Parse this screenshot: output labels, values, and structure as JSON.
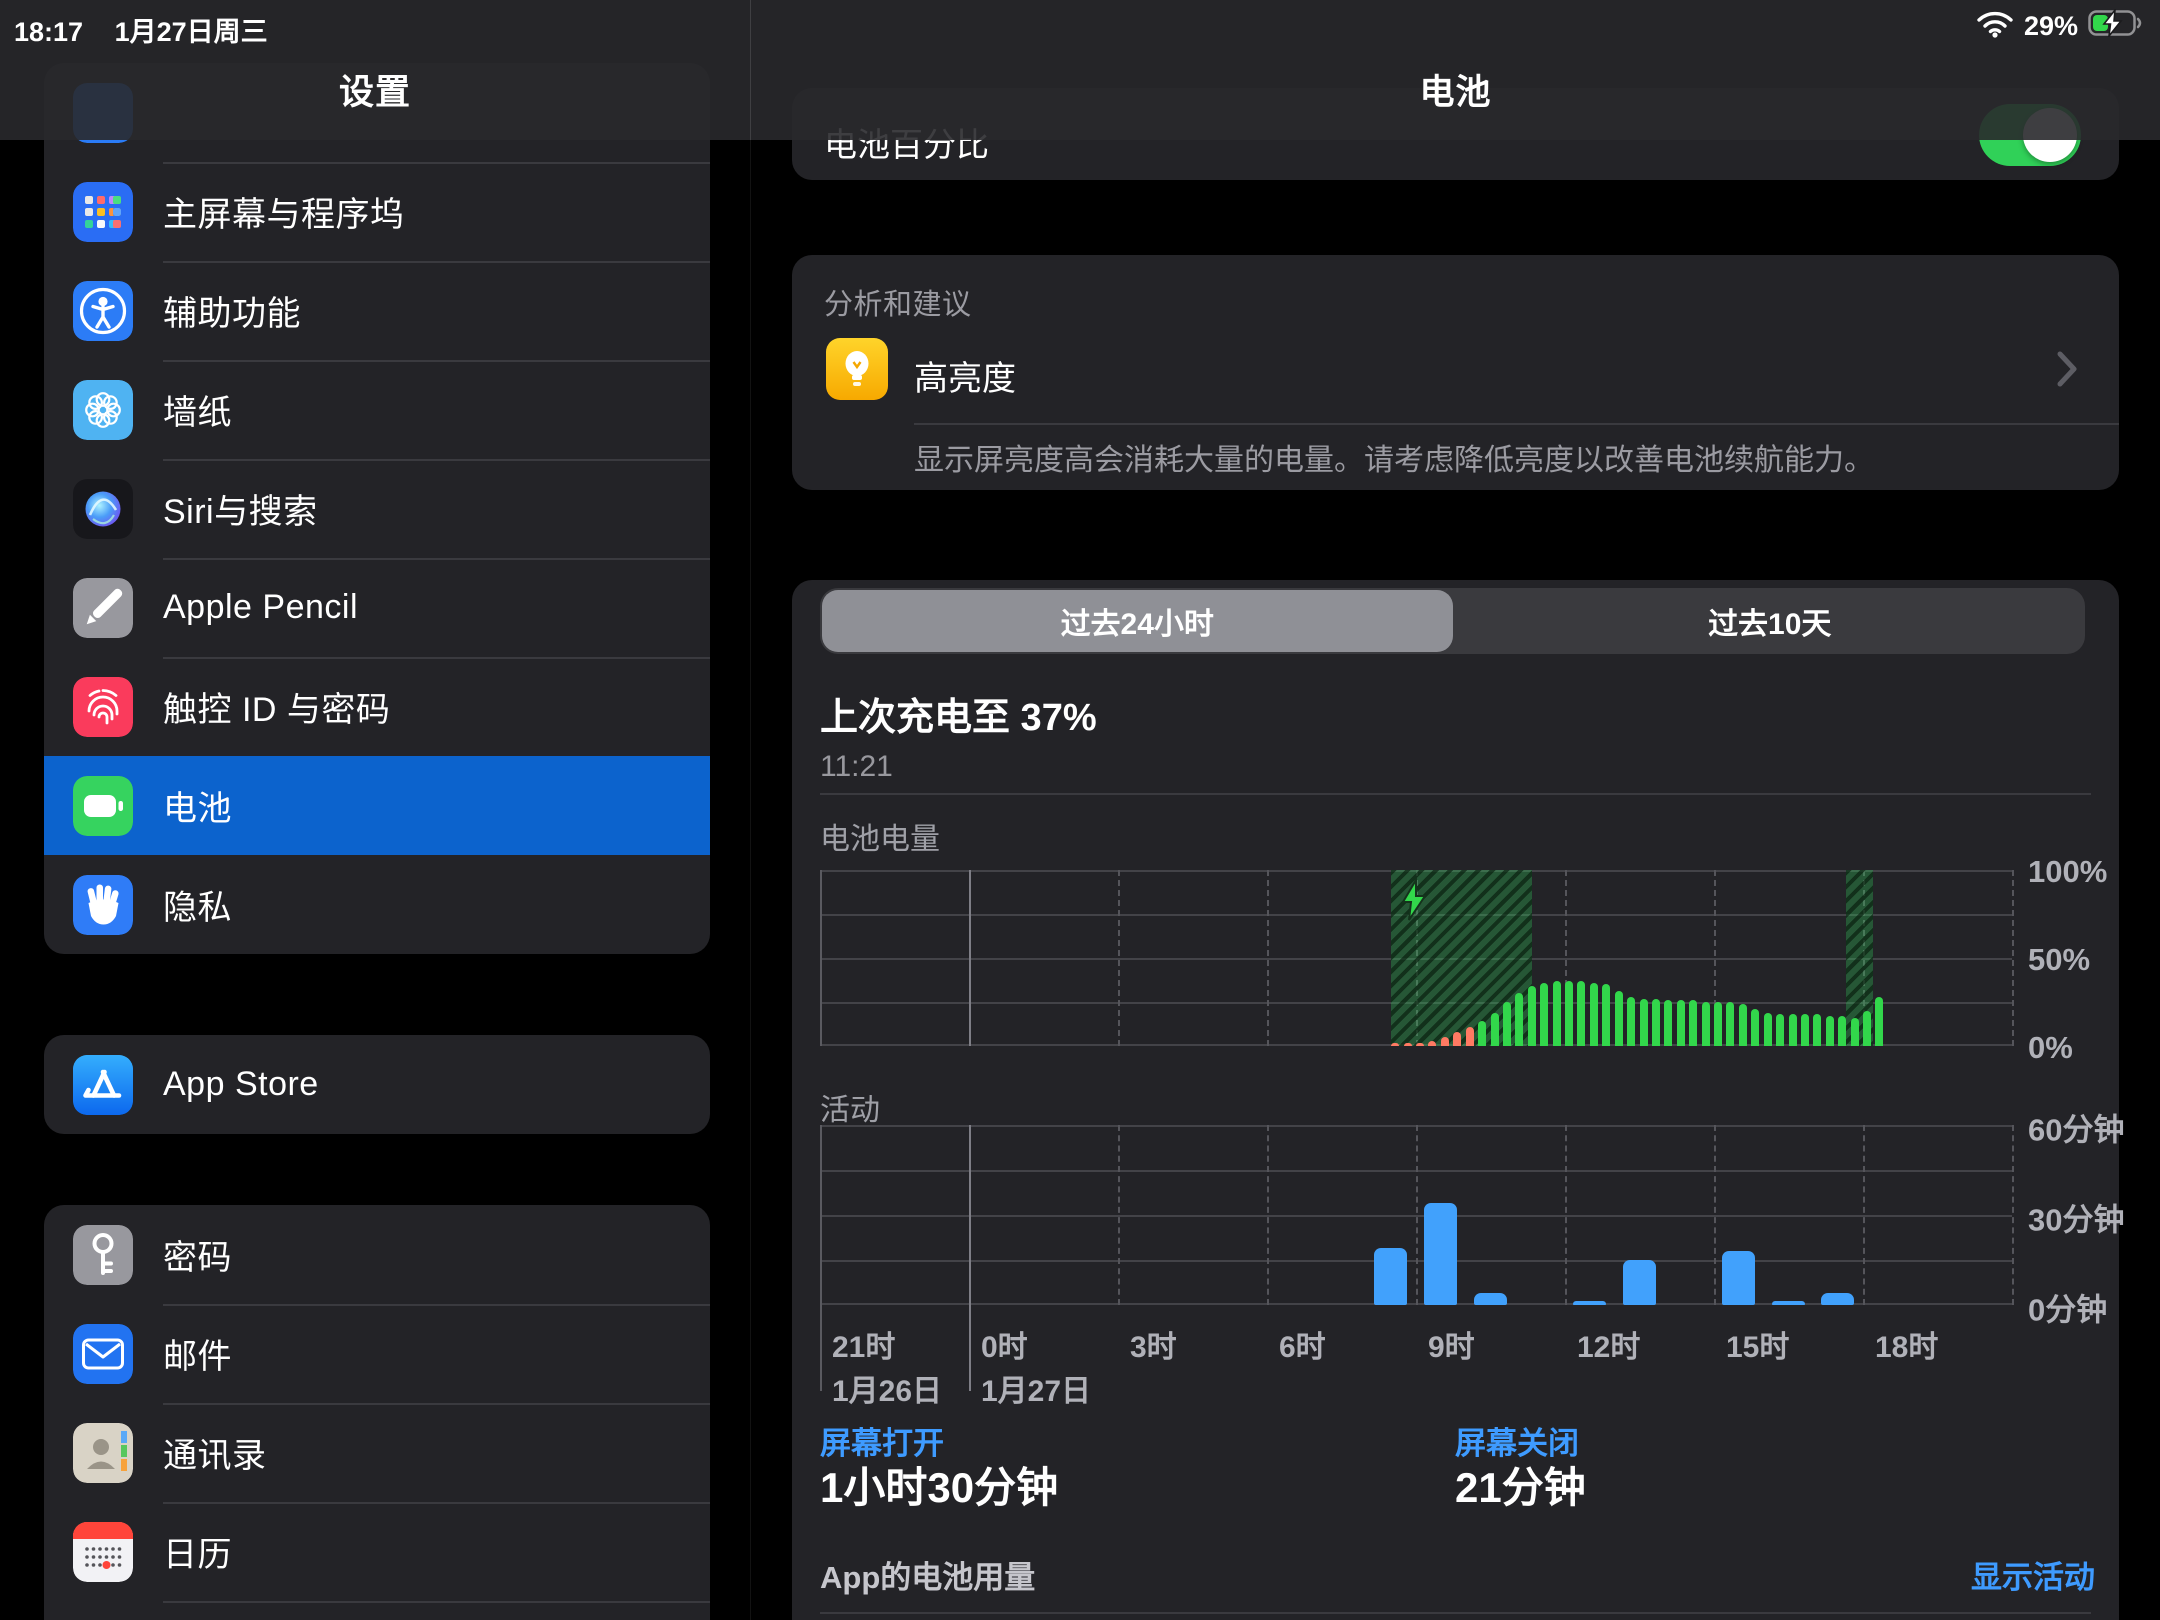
{
  "status_bar": {
    "time": "18:17",
    "date": "1月27日周三",
    "battery_percent": "29%"
  },
  "colors": {
    "accent_blue": "#3e9bff",
    "selected_row_blue": "#0c63cd",
    "battery_green": "#32d74b",
    "low_battery_orange": "#ff7a63",
    "activity_bar_blue": "#41a1fc",
    "toggle_green": "#30d158",
    "card_bg": "#232327",
    "page_bg": "#000000"
  },
  "sidebar": {
    "title": "设置",
    "groups": [
      {
        "name": "group-1",
        "items": [
          {
            "key": "partial-top",
            "label": "",
            "icon": "partial",
            "partial": true
          },
          {
            "key": "home-screen-dock",
            "label": "主屏幕与程序坞",
            "icon": "apps"
          },
          {
            "key": "accessibility",
            "label": "辅助功能",
            "icon": "accessibility"
          },
          {
            "key": "wallpaper",
            "label": "墙纸",
            "icon": "wallpaper"
          },
          {
            "key": "siri-search",
            "label": "Siri与搜索",
            "icon": "siri"
          },
          {
            "key": "apple-pencil",
            "label": "Apple Pencil",
            "icon": "pencil"
          },
          {
            "key": "touch-id-passcode",
            "label": "触控 ID 与密码",
            "icon": "touchid"
          },
          {
            "key": "battery",
            "label": "电池",
            "icon": "battery",
            "selected": true
          },
          {
            "key": "privacy",
            "label": "隐私",
            "icon": "hand"
          }
        ]
      },
      {
        "name": "group-2",
        "items": [
          {
            "key": "app-store",
            "label": "App Store",
            "icon": "appstore"
          }
        ]
      },
      {
        "name": "group-3",
        "items": [
          {
            "key": "passwords",
            "label": "密码",
            "icon": "key"
          },
          {
            "key": "mail",
            "label": "邮件",
            "icon": "mail"
          },
          {
            "key": "contacts",
            "label": "通讯录",
            "icon": "contacts"
          },
          {
            "key": "calendar",
            "label": "日历",
            "icon": "calendar"
          },
          {
            "key": "partial-bottom",
            "label": "",
            "icon": "none",
            "partial": true
          }
        ]
      }
    ]
  },
  "detail": {
    "nav_title": "电池",
    "battery_percent_row": {
      "label": "电池百分比",
      "toggle_on": true
    },
    "suggestions": {
      "header": "分析和建议",
      "item": {
        "title": "高亮度",
        "description": "显示屏亮度高会消耗大量的电量。请考虑降低亮度以改善电池续航能力。"
      }
    },
    "segmented": {
      "selected": "过去24小时",
      "other": "过去10天"
    },
    "last_charge": {
      "title": "上次充电至 37%",
      "time": "11:21"
    },
    "screen_stats": {
      "on_label": "屏幕打开",
      "on_value": "1小时30分钟",
      "off_label": "屏幕关闭",
      "off_value": "21分钟"
    },
    "app_usage": {
      "label": "App的电池用量",
      "action": "显示活动"
    }
  },
  "chart_data": [
    {
      "id": "battery-level",
      "type": "bar",
      "title": "电池电量",
      "ylim": [
        0,
        100
      ],
      "ytick_labels": [
        "100%",
        "50%",
        "0%"
      ],
      "x_start_hour": 21,
      "x_span_hours": 24,
      "grid": true,
      "bar_interval_minutes": 15,
      "bars_start_time": "8:30",
      "values_percent": [
        1,
        2,
        2,
        3,
        5,
        8,
        11,
        14,
        19,
        25,
        30,
        34,
        36,
        37,
        37,
        37,
        36,
        35,
        31,
        28,
        27,
        27,
        26,
        26,
        26,
        25,
        25,
        25,
        24,
        21,
        19,
        18,
        18,
        18,
        18,
        17,
        17,
        16,
        20,
        28
      ],
      "low_battery_bar_count": 7,
      "charging_periods": [
        {
          "start": "8:30",
          "end": "11:20"
        },
        {
          "start": "17:40",
          "end": "18:12"
        }
      ]
    },
    {
      "id": "activity",
      "type": "bar",
      "title": "活动",
      "unit": "分钟",
      "ylim": [
        0,
        60
      ],
      "ytick_labels": [
        "60分钟",
        "30分钟",
        "0分钟"
      ],
      "hour_slots": [
        8,
        9,
        10,
        12,
        13,
        15,
        16,
        17
      ],
      "values_minutes": [
        19,
        34,
        4,
        1,
        15,
        18,
        1,
        4
      ],
      "x_tick_labels": [
        "21时",
        "0时",
        "3时",
        "6时",
        "9时",
        "12时",
        "15时",
        "18时"
      ],
      "x_tick_dates": [
        "1月26日",
        "1月27日"
      ]
    }
  ]
}
